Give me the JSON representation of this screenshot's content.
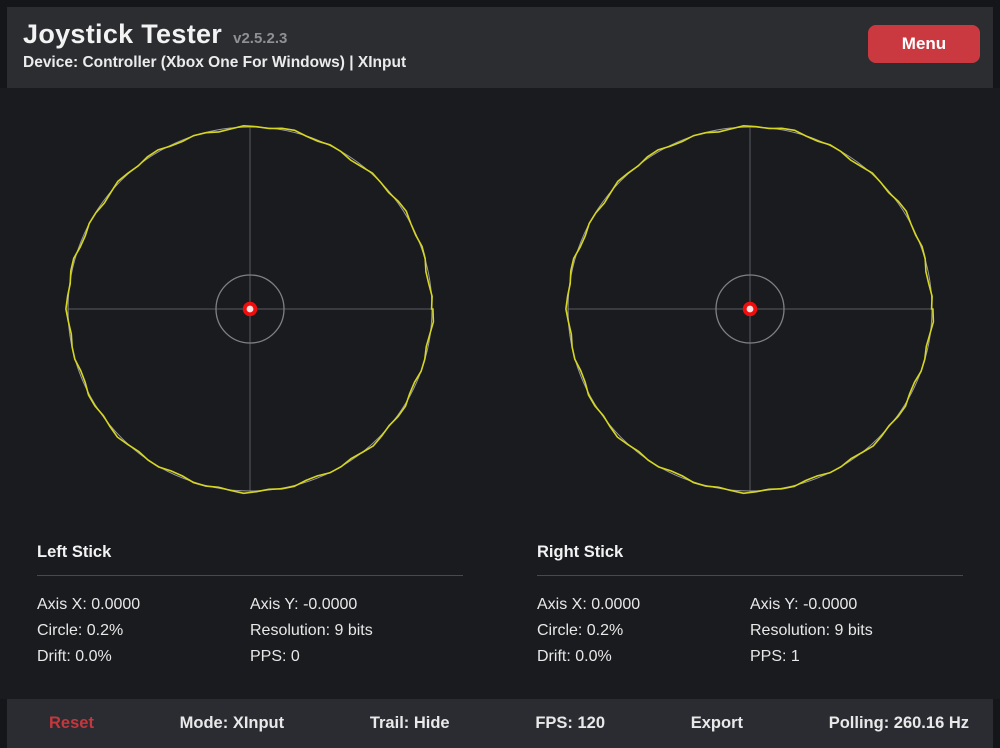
{
  "header": {
    "title": "Joystick Tester",
    "version": "v2.5.2.3",
    "device": "Device: Controller (Xbox One For Windows) | XInput",
    "menu_label": "Menu"
  },
  "colors": {
    "accent_red": "#cb3940",
    "reset_red": "#c4373d",
    "range_ring_yellow": "#d6d622",
    "reference_circle_gray": "#9b9da0",
    "crosshair_gray": "#585b60",
    "inner_circle_gray": "#7d8185",
    "dot_outer_red": "#f20d0d",
    "dot_inner_white": "#f4e0e0"
  },
  "sticks": [
    {
      "name": "Left Stick",
      "col1": [
        "Axis X: 0.0000",
        "Circle: 0.2%",
        "Drift: 0.0%"
      ],
      "col2": [
        "Axis Y: -0.0000",
        "Resolution: 9 bits",
        "PPS: 0"
      ]
    },
    {
      "name": "Right Stick",
      "col1": [
        "Axis X: 0.0000",
        "Circle: 0.2%",
        "Drift: 0.0%"
      ],
      "col2": [
        "Axis Y: -0.0000",
        "Resolution: 9 bits",
        "PPS: 1"
      ]
    }
  ],
  "footer": {
    "reset_label": "Reset",
    "mode": "Mode: XInput",
    "trail": "Trail: Hide",
    "fps": "FPS: 120",
    "export_label": "Export",
    "polling": "Polling: 260.16 Hz"
  }
}
